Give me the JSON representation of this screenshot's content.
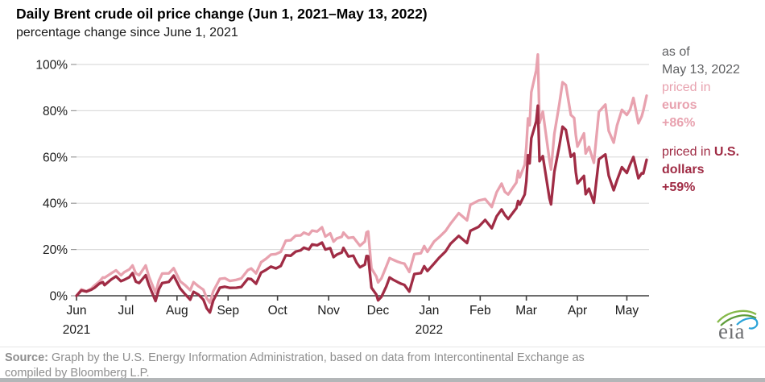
{
  "title": "Daily Brent crude oil price change (Jun 1, 2021–May 13, 2022)",
  "subtitle": "percentage change since June 1, 2021",
  "legend": {
    "as_of_line1": "as of",
    "as_of_line2": "May 13, 2022",
    "euro_line1": "priced in",
    "euro_line2": "euros",
    "euro_value": "+86%",
    "usd_line1": "priced in ",
    "usd_line1_bold": "U.S.",
    "usd_line2": "dollars",
    "usd_value": "+59%"
  },
  "source": {
    "bold": "Source:",
    "line1": " Graph by the U.S. Energy Information Administration, based on data from Intercontinental Exchange as",
    "line2": "compiled by Bloomberg L.P."
  },
  "logo_text": "eia",
  "colors": {
    "euro": "#e8a2af",
    "usd": "#a02c45",
    "grid": "#dcdcdc",
    "axis": "#3d3d3d",
    "tick": "#999999",
    "text": "#1a1a1a",
    "gray_text": "#5f6062",
    "source_text": "#8e8e8e",
    "divider": "#b3b6b8",
    "logo_text": "#6d6e71",
    "logo_green": "#86b94a",
    "logo_green2": "#5e9c3a",
    "logo_blue": "#2aa3d8"
  },
  "chart_data": {
    "type": "line",
    "title": "Daily Brent crude oil price change (Jun 1, 2021–May 13, 2022)",
    "xlabel": "",
    "ylabel": "percentage change since June 1, 2021",
    "x_unit": "days since Jun 1, 2021",
    "x_max_day": 346,
    "ylim": [
      -8,
      106
    ],
    "grid": "horizontal",
    "legend_position": "right",
    "yticks": [
      {
        "v": 0,
        "label": "0%"
      },
      {
        "v": 20,
        "label": "20%"
      },
      {
        "v": 40,
        "label": "40%"
      },
      {
        "v": 60,
        "label": "60%"
      },
      {
        "v": 80,
        "label": "80%"
      },
      {
        "v": 100,
        "label": "100%"
      }
    ],
    "x_ticks": [
      {
        "label": "Jun",
        "day": 0,
        "year": "2021"
      },
      {
        "label": "Jul",
        "day": 30
      },
      {
        "label": "Aug",
        "day": 61
      },
      {
        "label": "Sep",
        "day": 92
      },
      {
        "label": "Oct",
        "day": 122
      },
      {
        "label": "Nov",
        "day": 153
      },
      {
        "label": "Dec",
        "day": 183
      },
      {
        "label": "Jan",
        "day": 214,
        "year": "2022"
      },
      {
        "label": "Feb",
        "day": 245
      },
      {
        "label": "Mar",
        "day": 273
      },
      {
        "label": "Apr",
        "day": 304
      },
      {
        "label": "May",
        "day": 334
      }
    ],
    "series": [
      {
        "name": "priced in euros",
        "end_label": "+86%",
        "color_key": "euro",
        "points": [
          [
            0,
            0
          ],
          [
            3,
            2.8
          ],
          [
            6,
            2.0
          ],
          [
            9,
            3.1
          ],
          [
            11,
            4.5
          ],
          [
            14,
            6.2
          ],
          [
            16,
            7.9
          ],
          [
            17,
            7.8
          ],
          [
            21,
            9.7
          ],
          [
            24,
            11.0
          ],
          [
            27,
            8.9
          ],
          [
            29,
            10.2
          ],
          [
            32,
            11.4
          ],
          [
            34,
            13.1
          ],
          [
            36,
            9.7
          ],
          [
            38,
            8.9
          ],
          [
            42,
            13.1
          ],
          [
            44,
            8.3
          ],
          [
            48,
            1.2
          ],
          [
            50,
            6.6
          ],
          [
            52,
            9.6
          ],
          [
            56,
            9.7
          ],
          [
            59,
            11.9
          ],
          [
            63,
            6.2
          ],
          [
            66,
            4.5
          ],
          [
            69,
            2.4
          ],
          [
            71,
            5.9
          ],
          [
            74,
            4.1
          ],
          [
            77,
            2.6
          ],
          [
            79,
            -1.0
          ],
          [
            81,
            -3.0
          ],
          [
            83,
            1.9
          ],
          [
            87,
            7.3
          ],
          [
            90,
            7.6
          ],
          [
            93,
            6.4
          ],
          [
            97,
            6.9
          ],
          [
            100,
            7.5
          ],
          [
            104,
            11.1
          ],
          [
            106,
            11.8
          ],
          [
            109,
            9.7
          ],
          [
            112,
            14.5
          ],
          [
            115,
            16.0
          ],
          [
            118,
            17.8
          ],
          [
            121,
            18.0
          ],
          [
            124,
            19.0
          ],
          [
            127,
            23.8
          ],
          [
            130,
            24.0
          ],
          [
            133,
            26.0
          ],
          [
            136,
            26.1
          ],
          [
            138,
            27.3
          ],
          [
            141,
            26.4
          ],
          [
            143,
            28.2
          ],
          [
            146,
            27.8
          ],
          [
            149,
            29.6
          ],
          [
            151,
            25.6
          ],
          [
            154,
            27.0
          ],
          [
            156,
            23.4
          ],
          [
            158,
            24.8
          ],
          [
            161,
            25.5
          ],
          [
            162,
            27.3
          ],
          [
            165,
            25.0
          ],
          [
            168,
            25.3
          ],
          [
            170,
            23.4
          ],
          [
            172,
            21.6
          ],
          [
            175,
            23.5
          ],
          [
            176,
            27.4
          ],
          [
            177,
            27.8
          ],
          [
            179,
            11.8
          ],
          [
            182,
            8.3
          ],
          [
            183,
            5.8
          ],
          [
            185,
            7.5
          ],
          [
            188,
            12.7
          ],
          [
            190,
            16.3
          ],
          [
            192,
            15.6
          ],
          [
            195,
            14.7
          ],
          [
            197,
            14.2
          ],
          [
            199,
            13.9
          ],
          [
            202,
            10.3
          ],
          [
            205,
            18.0
          ],
          [
            209,
            18.4
          ],
          [
            211,
            21.5
          ],
          [
            213,
            19.0
          ],
          [
            217,
            23.4
          ],
          [
            220,
            25.3
          ],
          [
            224,
            28.1
          ],
          [
            227,
            31.2
          ],
          [
            232,
            35.7
          ],
          [
            237,
            32.6
          ],
          [
            239,
            39.3
          ],
          [
            244,
            41.2
          ],
          [
            248,
            41.8
          ],
          [
            252,
            38.4
          ],
          [
            255,
            44.8
          ],
          [
            258,
            48.5
          ],
          [
            260,
            44.9
          ],
          [
            262,
            43.8
          ],
          [
            267,
            49.0
          ],
          [
            268,
            54.0
          ],
          [
            269,
            51.2
          ],
          [
            272,
            56.7
          ],
          [
            273,
            64.2
          ],
          [
            274,
            76.7
          ],
          [
            275,
            73.7
          ],
          [
            276,
            88.0
          ],
          [
            279,
            97.5
          ],
          [
            280,
            104.3
          ],
          [
            281,
            74.7
          ],
          [
            283,
            79.7
          ],
          [
            287,
            58.7
          ],
          [
            288,
            54.6
          ],
          [
            290,
            70.0
          ],
          [
            293,
            82.7
          ],
          [
            295,
            92.3
          ],
          [
            297,
            91.1
          ],
          [
            300,
            78.2
          ],
          [
            302,
            76.9
          ],
          [
            303,
            69.6
          ],
          [
            304,
            64.5
          ],
          [
            308,
            70.2
          ],
          [
            309,
            61.5
          ],
          [
            311,
            64.4
          ],
          [
            314,
            57.5
          ],
          [
            317,
            79.5
          ],
          [
            321,
            82.7
          ],
          [
            323,
            71.3
          ],
          [
            326,
            66.2
          ],
          [
            328,
            73.6
          ],
          [
            331,
            80.4
          ],
          [
            334,
            78.2
          ],
          [
            336,
            80.5
          ],
          [
            338,
            85.5
          ],
          [
            341,
            74.6
          ],
          [
            343,
            77.6
          ],
          [
            344,
            80.1
          ],
          [
            346,
            86.5
          ]
        ]
      },
      {
        "name": "priced in U.S. dollars",
        "end_label": "+59%",
        "color_key": "usd",
        "points": [
          [
            0,
            0
          ],
          [
            3,
            2.3
          ],
          [
            6,
            1.8
          ],
          [
            9,
            2.6
          ],
          [
            11,
            3.5
          ],
          [
            14,
            5.3
          ],
          [
            16,
            5.9
          ],
          [
            17,
            4.6
          ],
          [
            21,
            7.0
          ],
          [
            24,
            8.4
          ],
          [
            27,
            6.3
          ],
          [
            29,
            6.9
          ],
          [
            32,
            8.0
          ],
          [
            34,
            9.8
          ],
          [
            36,
            6.1
          ],
          [
            38,
            5.5
          ],
          [
            42,
            8.9
          ],
          [
            44,
            4.6
          ],
          [
            48,
            -2.3
          ],
          [
            50,
            2.8
          ],
          [
            52,
            5.5
          ],
          [
            56,
            6.0
          ],
          [
            59,
            8.7
          ],
          [
            63,
            3.1
          ],
          [
            66,
            0.6
          ],
          [
            69,
            -1.7
          ],
          [
            71,
            1.7
          ],
          [
            74,
            0.5
          ],
          [
            77,
            -1.7
          ],
          [
            79,
            -5.4
          ],
          [
            81,
            -7.2
          ],
          [
            83,
            -2.1
          ],
          [
            87,
            3.5
          ],
          [
            90,
            3.9
          ],
          [
            93,
            3.4
          ],
          [
            97,
            3.5
          ],
          [
            100,
            3.8
          ],
          [
            104,
            7.4
          ],
          [
            106,
            7.2
          ],
          [
            109,
            5.2
          ],
          [
            112,
            10.0
          ],
          [
            115,
            11.2
          ],
          [
            118,
            12.6
          ],
          [
            121,
            11.8
          ],
          [
            124,
            12.9
          ],
          [
            127,
            17.5
          ],
          [
            130,
            17.3
          ],
          [
            133,
            19.1
          ],
          [
            136,
            19.6
          ],
          [
            138,
            20.8
          ],
          [
            141,
            20.0
          ],
          [
            143,
            22.2
          ],
          [
            146,
            21.8
          ],
          [
            149,
            23.0
          ],
          [
            151,
            20.0
          ],
          [
            154,
            20.6
          ],
          [
            156,
            16.7
          ],
          [
            158,
            17.8
          ],
          [
            161,
            18.7
          ],
          [
            162,
            20.7
          ],
          [
            165,
            17.0
          ],
          [
            168,
            17.3
          ],
          [
            170,
            14.3
          ],
          [
            172,
            12.3
          ],
          [
            175,
            13.5
          ],
          [
            176,
            17.2
          ],
          [
            177,
            17.1
          ],
          [
            179,
            3.5
          ],
          [
            182,
            0.5
          ],
          [
            183,
            -2.0
          ],
          [
            185,
            -0.5
          ],
          [
            188,
            4.0
          ],
          [
            190,
            7.9
          ],
          [
            192,
            7.0
          ],
          [
            195,
            5.9
          ],
          [
            197,
            5.2
          ],
          [
            199,
            4.7
          ],
          [
            202,
            1.8
          ],
          [
            205,
            9.4
          ],
          [
            209,
            9.8
          ],
          [
            211,
            12.8
          ],
          [
            213,
            10.7
          ],
          [
            217,
            13.9
          ],
          [
            220,
            16.4
          ],
          [
            224,
            19.2
          ],
          [
            227,
            22.5
          ],
          [
            232,
            25.9
          ],
          [
            237,
            22.8
          ],
          [
            239,
            28.1
          ],
          [
            244,
            29.8
          ],
          [
            248,
            32.8
          ],
          [
            252,
            29.2
          ],
          [
            255,
            34.4
          ],
          [
            258,
            37.3
          ],
          [
            260,
            34.9
          ],
          [
            262,
            33.2
          ],
          [
            267,
            37.9
          ],
          [
            268,
            41.0
          ],
          [
            269,
            39.4
          ],
          [
            272,
            43.8
          ],
          [
            273,
            49.4
          ],
          [
            274,
            60.8
          ],
          [
            275,
            57.2
          ],
          [
            276,
            68.1
          ],
          [
            279,
            75.4
          ],
          [
            280,
            82.2
          ],
          [
            281,
            58.2
          ],
          [
            283,
            60.4
          ],
          [
            287,
            42.2
          ],
          [
            288,
            39.5
          ],
          [
            290,
            53.6
          ],
          [
            293,
            64.6
          ],
          [
            295,
            73.1
          ],
          [
            297,
            71.7
          ],
          [
            300,
            60.1
          ],
          [
            302,
            61.5
          ],
          [
            303,
            53.6
          ],
          [
            304,
            48.6
          ],
          [
            308,
            51.8
          ],
          [
            309,
            43.9
          ],
          [
            311,
            46.3
          ],
          [
            314,
            40.2
          ],
          [
            317,
            59.0
          ],
          [
            321,
            61.1
          ],
          [
            323,
            52.0
          ],
          [
            326,
            45.6
          ],
          [
            328,
            49.9
          ],
          [
            331,
            55.6
          ],
          [
            334,
            53.1
          ],
          [
            336,
            56.8
          ],
          [
            338,
            60.0
          ],
          [
            341,
            50.8
          ],
          [
            343,
            53.0
          ],
          [
            344,
            52.9
          ],
          [
            346,
            58.8
          ]
        ]
      }
    ]
  }
}
